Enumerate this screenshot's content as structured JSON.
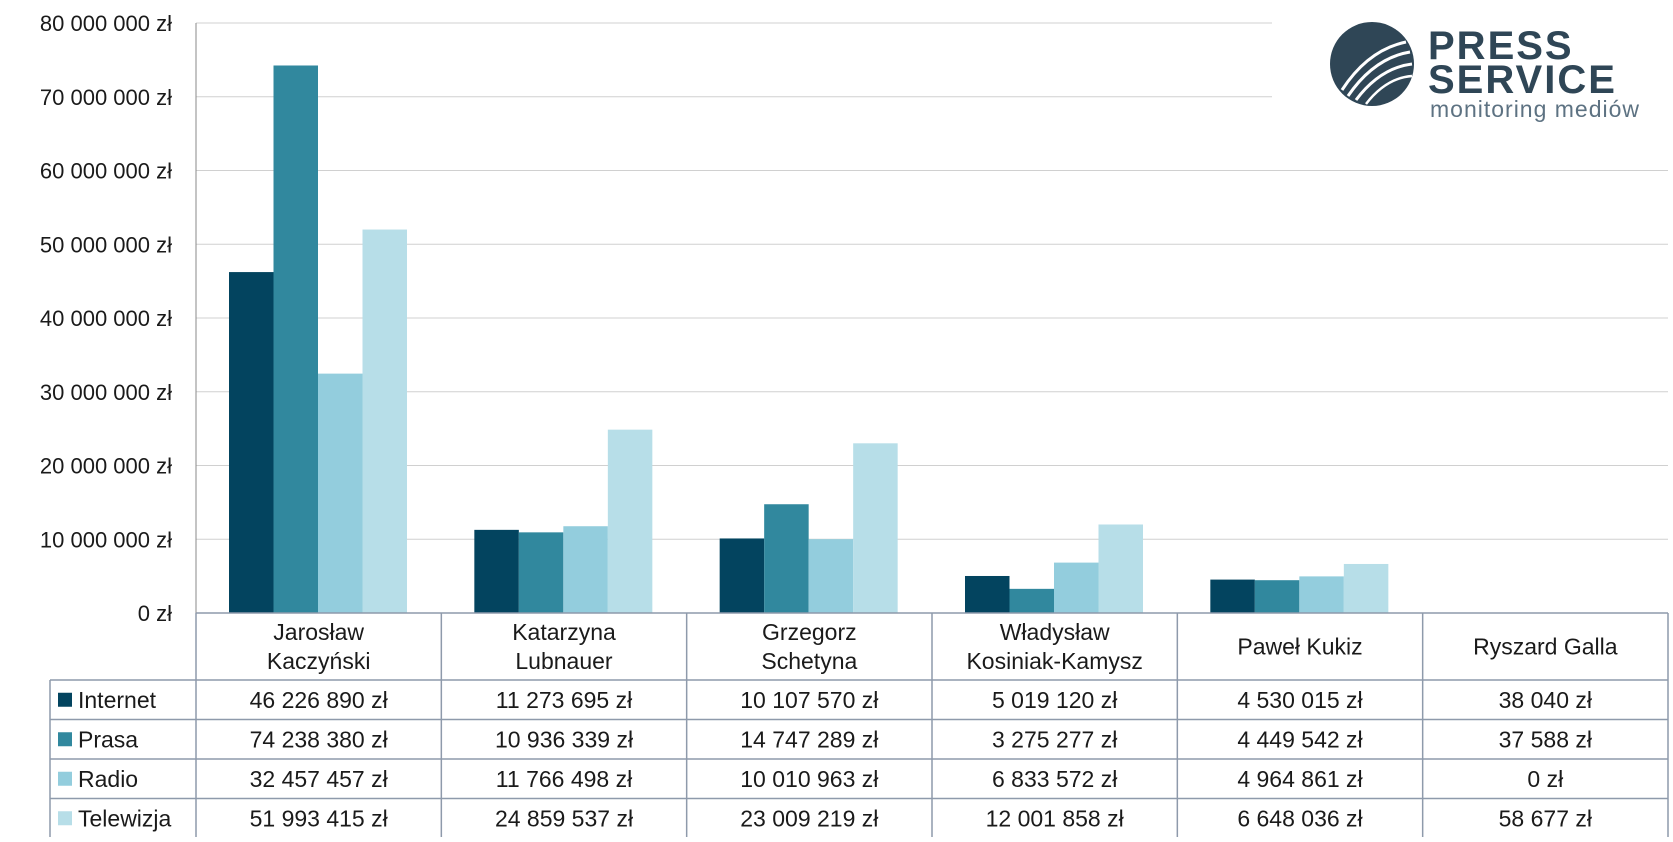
{
  "chart_data": {
    "type": "bar",
    "categories": [
      [
        "Jarosław",
        "Kaczyński"
      ],
      [
        "Katarzyna",
        "Lubnauer"
      ],
      [
        "Grzegorz",
        "Schetyna"
      ],
      [
        "Władysław",
        "Kosiniak-Kamysz"
      ],
      [
        "Paweł Kukiz"
      ],
      [
        "Ryszard Galla"
      ]
    ],
    "series": [
      {
        "name": "Internet",
        "color": "#03445f",
        "values": [
          46226890,
          11273695,
          10107570,
          5019120,
          4530015,
          38040
        ],
        "labels": [
          "46 226 890 zł",
          "11 273 695 zł",
          "10 107 570 zł",
          "5 019 120 zł",
          "4 530 015 zł",
          "38 040 zł"
        ]
      },
      {
        "name": "Prasa",
        "color": "#31889e",
        "values": [
          74238380,
          10936339,
          14747289,
          3275277,
          4449542,
          37588
        ],
        "labels": [
          "74 238 380 zł",
          "10 936 339 zł",
          "14 747 289 zł",
          "3 275 277 zł",
          "4 449 542 zł",
          "37 588 zł"
        ]
      },
      {
        "name": "Radio",
        "color": "#93cddd",
        "values": [
          32457457,
          11766498,
          10010963,
          6833572,
          4964861,
          0
        ],
        "labels": [
          "32 457 457 zł",
          "11 766 498 zł",
          "10 010 963 zł",
          "6 833 572 zł",
          "4 964 861 zł",
          "0 zł"
        ]
      },
      {
        "name": "Telewizja",
        "color": "#b7dee8",
        "values": [
          51993415,
          24859537,
          23009219,
          12001858,
          6648036,
          58677
        ],
        "labels": [
          "51 993 415 zł",
          "24 859 537 zł",
          "23 009 219 zł",
          "12 001 858 zł",
          "6 648 036 zł",
          "58 677 zł"
        ]
      }
    ],
    "y_ticks": [
      {
        "value": 0,
        "label": "0 zł"
      },
      {
        "value": 10000000,
        "label": "10 000 000 zł"
      },
      {
        "value": 20000000,
        "label": "20 000 000 zł"
      },
      {
        "value": 30000000,
        "label": "30 000 000 zł"
      },
      {
        "value": 40000000,
        "label": "40 000 000 zł"
      },
      {
        "value": 50000000,
        "label": "50 000 000 zł"
      },
      {
        "value": 60000000,
        "label": "60 000 000 zł"
      },
      {
        "value": 70000000,
        "label": "70 000 000 zł"
      },
      {
        "value": 80000000,
        "label": "80 000 000 zł"
      }
    ],
    "ylim": [
      0,
      80000000
    ],
    "grid": true,
    "data_table": true,
    "title": "",
    "xlabel": "",
    "ylabel": ""
  },
  "logo": {
    "line1": "PRESS",
    "line2": "SERVICE",
    "tagline": "monitoring mediów",
    "color": "#2f4656"
  }
}
